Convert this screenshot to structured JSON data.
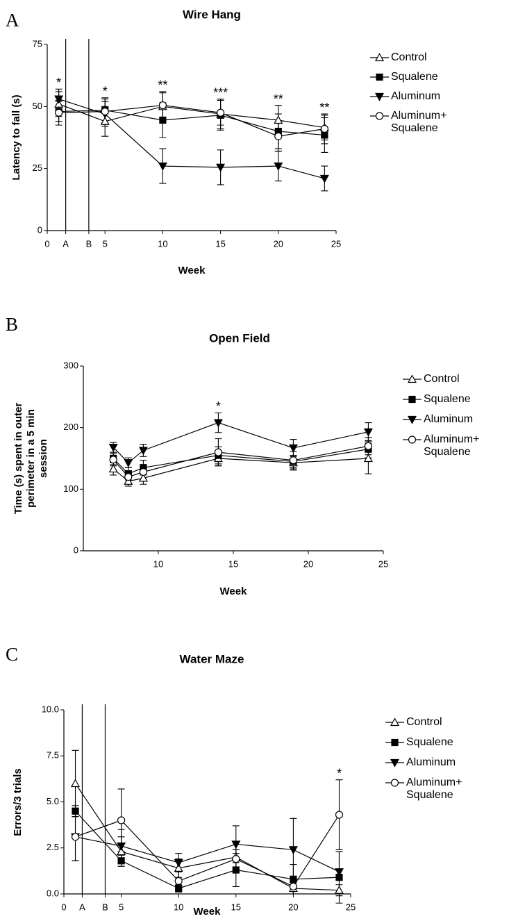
{
  "chart_data": [
    {
      "type": "line",
      "letter": "A",
      "title": "Wire Hang",
      "xlabel": "Week",
      "ylabel": "Latency to fall (s)",
      "x": [
        1,
        5,
        10,
        15,
        20,
        24
      ],
      "xlim": [
        0,
        25
      ],
      "xticks": [
        0,
        {
          "value": 1.6,
          "label": "A",
          "line": true
        },
        {
          "value": 3.6,
          "label": "B",
          "line": true
        },
        5,
        10,
        15,
        20,
        25
      ],
      "ylim": [
        0,
        75
      ],
      "yticks": [
        0,
        25,
        50,
        75
      ],
      "series": [
        {
          "name": "Control",
          "color": "#000000",
          "marker": "open-triangle",
          "values": [
            51,
            44,
            50,
            47,
            44.5,
            41.5
          ],
          "errors": [
            5,
            6,
            6,
            6,
            6,
            5
          ]
        },
        {
          "name": "Squalene",
          "color": "#000000",
          "marker": "filled-square",
          "values": [
            48,
            48.5,
            44.5,
            46.5,
            40,
            38.5
          ],
          "errors": [
            4,
            5,
            7,
            6,
            7,
            7
          ]
        },
        {
          "name": "Aluminum",
          "color": "#000000",
          "marker": "filled-triangle-down",
          "values": [
            53,
            47,
            26,
            25.5,
            26,
            21
          ],
          "errors": [
            4,
            5,
            7,
            7,
            6,
            5
          ]
        },
        {
          "name": "Aluminum+ Squalene",
          "color": "#000000",
          "marker": "open-circle",
          "values": [
            47.5,
            48,
            50.5,
            47.5,
            38,
            41
          ],
          "errors": [
            5,
            5,
            5,
            5,
            6,
            6
          ]
        }
      ],
      "annotations": [
        {
          "x": 1,
          "text": "*"
        },
        {
          "x": 5,
          "text": "*"
        },
        {
          "x": 10,
          "text": "**"
        },
        {
          "x": 15,
          "text": "***"
        },
        {
          "x": 20,
          "text": "**"
        },
        {
          "x": 24,
          "text": "**"
        }
      ]
    },
    {
      "type": "line",
      "letter": "B",
      "title": "Open Field",
      "xlabel": "Week",
      "ylabel": "Time (s) spent in outer perimeter in a 5 min session",
      "x": [
        7,
        8,
        9,
        14,
        19,
        24
      ],
      "xlim": [
        5,
        25
      ],
      "xticks": [
        10,
        15,
        20,
        25
      ],
      "ylim": [
        0,
        300
      ],
      "yticks": [
        0,
        100,
        200,
        300
      ],
      "series": [
        {
          "name": "Control",
          "color": "#000000",
          "marker": "open-triangle",
          "values": [
            133,
            113,
            118,
            150,
            143,
            150
          ],
          "errors": [
            10,
            8,
            10,
            12,
            12,
            25
          ]
        },
        {
          "name": "Squalene",
          "color": "#000000",
          "marker": "filled-square",
          "values": [
            150,
            125,
            135,
            155,
            145,
            165
          ],
          "errors": [
            10,
            10,
            12,
            14,
            10,
            14
          ]
        },
        {
          "name": "Aluminum",
          "color": "#000000",
          "marker": "filled-triangle-down",
          "values": [
            168,
            143,
            163,
            208,
            167,
            193
          ],
          "errors": [
            8,
            8,
            10,
            16,
            14,
            15
          ]
        },
        {
          "name": "Aluminum+ Squalene",
          "color": "#000000",
          "marker": "open-circle",
          "values": [
            148,
            120,
            128,
            160,
            147,
            170
          ],
          "errors": [
            10,
            10,
            12,
            22,
            14,
            14
          ]
        }
      ],
      "annotations": [
        {
          "x": 14,
          "text": "*"
        }
      ]
    },
    {
      "type": "line",
      "letter": "C",
      "title": "Water Maze",
      "xlabel": "Week",
      "ylabel": "Errors/3 trials",
      "x": [
        1,
        5,
        10,
        15,
        20,
        24
      ],
      "xlim": [
        0,
        25
      ],
      "xticks": [
        0,
        {
          "value": 1.6,
          "label": "A",
          "line": true
        },
        {
          "value": 3.6,
          "label": "B",
          "line": true
        },
        5,
        10,
        15,
        20,
        25
      ],
      "ylim": [
        0,
        10
      ],
      "yticks": [
        {
          "value": 0,
          "label": "0.0"
        },
        {
          "value": 2.5,
          "label": "2.5"
        },
        {
          "value": 5,
          "label": "5.0"
        },
        {
          "value": 7.5,
          "label": "7.5"
        },
        {
          "value": 10,
          "label": "10.0"
        }
      ],
      "series": [
        {
          "name": "Control",
          "color": "#000000",
          "marker": "open-triangle",
          "values": [
            6.0,
            2.3,
            1.4,
            2.0,
            0.3,
            0.2
          ],
          "errors": [
            1.8,
            0.8,
            0.5,
            0.8,
            0.3,
            0.3
          ]
        },
        {
          "name": "Squalene",
          "color": "#000000",
          "marker": "filled-square",
          "values": [
            4.5,
            1.8,
            0.3,
            1.3,
            0.8,
            0.9
          ],
          "errors": [
            0.3,
            0.3,
            0.2,
            0.9,
            0.8,
            1.4
          ]
        },
        {
          "name": "Aluminum",
          "color": "#000000",
          "marker": "filled-triangle-down",
          "values": [
            3.1,
            2.6,
            1.7,
            2.7,
            2.4,
            1.2
          ],
          "errors": [
            1.3,
            0.9,
            0.5,
            1.0,
            1.7,
            1.1
          ]
        },
        {
          "name": "Aluminum+ Squalene",
          "color": "#000000",
          "marker": "open-circle",
          "values": [
            3.1,
            4.0,
            0.7,
            1.9,
            0.4,
            4.3
          ],
          "errors": [
            1.3,
            1.7,
            0.5,
            0.5,
            0.4,
            1.9
          ]
        }
      ],
      "annotations": [
        {
          "x": 24,
          "text": "*"
        }
      ]
    }
  ]
}
